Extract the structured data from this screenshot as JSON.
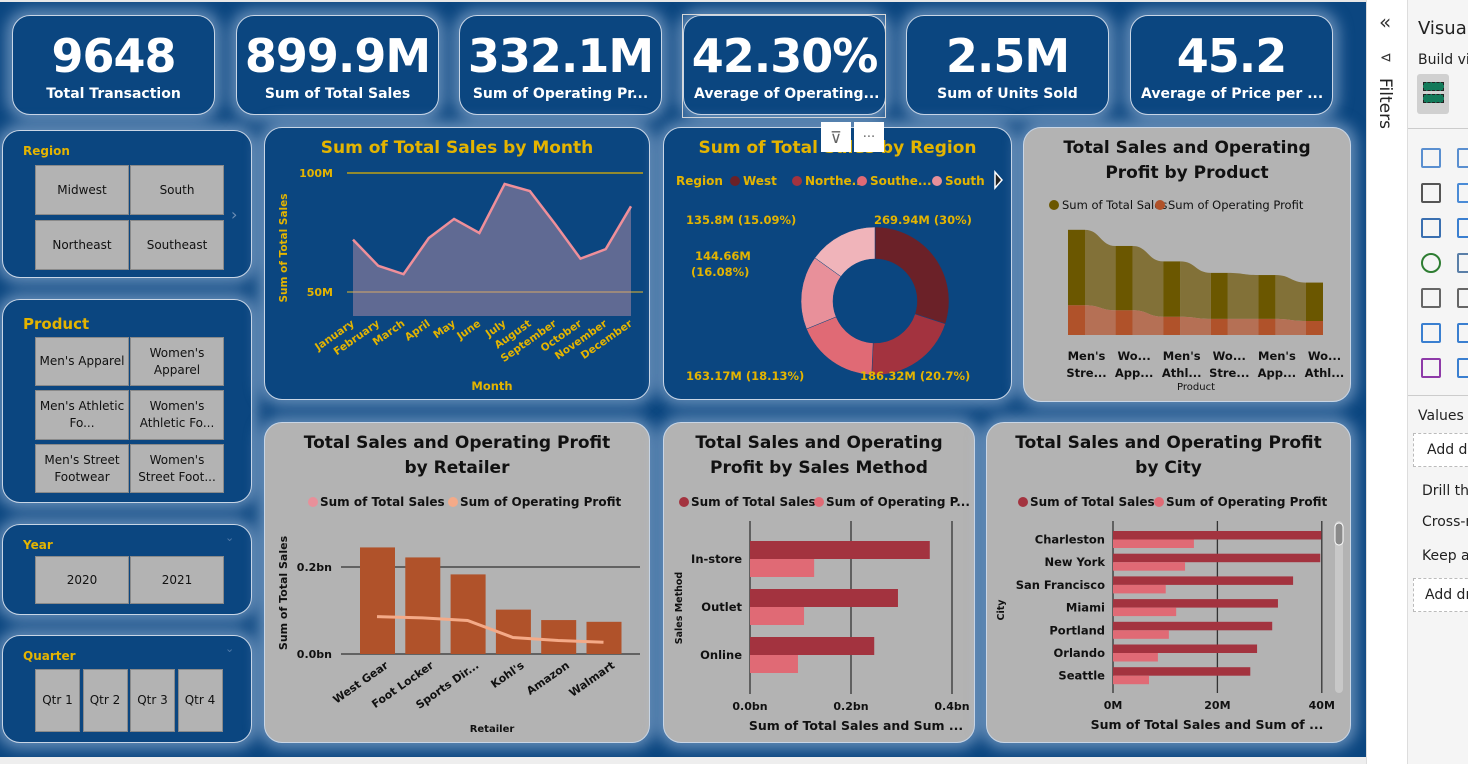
{
  "kpis": [
    {
      "value": "9648",
      "label": "Total Transaction"
    },
    {
      "value": "899.9M",
      "label": "Sum of Total Sales"
    },
    {
      "value": "332.1M",
      "label": "Sum of Operating Pr..."
    },
    {
      "value": "42.30%",
      "label": "Average of Operating..."
    },
    {
      "value": "2.5M",
      "label": "Sum of Units Sold"
    },
    {
      "value": "45.2",
      "label": "Average of Price per ..."
    }
  ],
  "slicers": {
    "region": {
      "title": "Region",
      "items": [
        "Midwest",
        "South",
        "Northeast",
        "Southeast"
      ]
    },
    "product": {
      "title": "Product",
      "items": [
        "Men's Apparel",
        "Women's Apparel",
        "Men's Athletic Fo...",
        "Women's Athletic Fo...",
        "Men's Street Footwear",
        "Women's Street Foot..."
      ]
    },
    "year": {
      "title": "Year",
      "items": [
        "2020",
        "2021"
      ]
    },
    "quarter": {
      "title": "Quarter",
      "items": [
        "Qtr 1",
        "Qtr 2",
        "Qtr 3",
        "Qtr 4"
      ]
    }
  },
  "visual_header": {
    "icons": [
      "filter-icon",
      "more-options-icon"
    ]
  },
  "colors": {
    "canvas": "#0b4680",
    "gold": "#e4b400",
    "card_grey": "#b3b3b3"
  },
  "chart_data": [
    {
      "id": "month",
      "type": "area",
      "title": "Sum of Total Sales by Month",
      "xlabel": "Month",
      "ylabel": "Sum of Total Sales",
      "categories": [
        "January",
        "February",
        "March",
        "April",
        "May",
        "June",
        "July",
        "August",
        "September",
        "October",
        "November",
        "December"
      ],
      "values": [
        72,
        61,
        57.5,
        72.7,
        80.7,
        74.8,
        95.4,
        92.4,
        78.5,
        64,
        68,
        86
      ],
      "unit": "M",
      "yticks": [
        "100M",
        "50M"
      ],
      "ytick_values": [
        100,
        50
      ],
      "grid": true,
      "color": "#ef8f9a"
    },
    {
      "id": "region",
      "type": "pie",
      "title": "Sum of Total Sales by Region",
      "legend_title": "Region",
      "legend_position": "top",
      "legend": [
        "West",
        "Northe...",
        "Southe...",
        "South"
      ],
      "values": [
        269.94,
        186.32,
        163.17,
        144.66,
        135.8
      ],
      "labels": [
        "269.94M (30%)",
        "186.32M (20.7%)",
        "163.17M (18.13%)",
        "144.66M (16.08%)",
        "135.8M (15.09%)"
      ],
      "colors": [
        "#6b2128",
        "#a3333f",
        "#e06a75",
        "#e8909a",
        "#f0b4ba"
      ]
    },
    {
      "id": "product",
      "type": "area",
      "subtype": "ribbon",
      "title": "Total Sales and Operating Profit by Product",
      "xlabel": "Product",
      "categories": [
        "Men's Stre...",
        "Wo... App...",
        "Men's Athl...",
        "Wo... Stre...",
        "Men's App...",
        "Wo... Athl..."
      ],
      "category_lines": [
        [
          "Men's",
          "Stre..."
        ],
        [
          "Wo...",
          "App..."
        ],
        [
          "Men's",
          "Athl..."
        ],
        [
          "Wo...",
          "Stre..."
        ],
        [
          "Men's",
          "App..."
        ],
        [
          "Wo...",
          "Athl..."
        ]
      ],
      "series": [
        {
          "name": "Sum of Total Sales",
          "values": [
            210,
            179,
            154,
            128,
            122,
            107
          ],
          "color": "#6b5700"
        },
        {
          "name": "Sum of Operating Profit",
          "values": [
            83,
            69,
            51,
            45,
            45,
            39
          ],
          "color": "#b0522a"
        }
      ],
      "unit": "M"
    },
    {
      "id": "retailer",
      "type": "bar",
      "title": "Total Sales and Operating Profit by Retailer",
      "xlabel": "Retailer",
      "ylabel": "Sum of Total Sales",
      "categories": [
        "West Gear",
        "Foot Locker",
        "Sports Dir...",
        "Kohl's",
        "Amazon",
        "Walmart"
      ],
      "series": [
        {
          "name": "Sum of Total Sales",
          "values": [
            0.245,
            0.222,
            0.183,
            0.102,
            0.078,
            0.074
          ],
          "color": "#b0522a",
          "legend_color": "#e8909a"
        },
        {
          "name": "Sum of Operating Profit",
          "type": "line",
          "values": [
            0.086,
            0.083,
            0.077,
            0.038,
            0.031,
            0.027
          ],
          "color": "#f4aa88"
        }
      ],
      "unit": "bn",
      "yticks": [
        "0.2bn",
        "0.0bn"
      ],
      "ytick_values": [
        0.2,
        0
      ]
    },
    {
      "id": "method",
      "type": "bar",
      "orientation": "horizontal",
      "title": "Total Sales and Operating Profit by Sales Method",
      "xlabel": "Sum of Total Sales and Sum ...",
      "ylabel": "Sales Method",
      "categories": [
        "In-store",
        "Outlet",
        "Online"
      ],
      "series": [
        {
          "name": "Sum of Total Sales",
          "values": [
            0.356,
            0.293,
            0.246
          ],
          "color": "#a3333f"
        },
        {
          "name": "Sum of Operating P...",
          "values": [
            0.127,
            0.107,
            0.095
          ],
          "color": "#e06a75"
        }
      ],
      "unit": "bn",
      "xticks": [
        "0.0bn",
        "0.2bn",
        "0.4bn"
      ],
      "xtick_values": [
        0,
        0.2,
        0.4
      ]
    },
    {
      "id": "city",
      "type": "bar",
      "orientation": "horizontal",
      "title": "Total Sales and Operating Profit by City",
      "xlabel": "Sum of Total Sales and Sum of ...",
      "ylabel": "City",
      "categories": [
        "Charleston",
        "New York",
        "San Francisco",
        "Miami",
        "Portland",
        "Orlando",
        "Seattle"
      ],
      "series": [
        {
          "name": "Sum of Total Sales",
          "values": [
            39.9,
            39.7,
            34.5,
            31.6,
            30.5,
            27.6,
            26.3
          ],
          "color": "#a3333f"
        },
        {
          "name": "Sum of Operating Profit",
          "values": [
            15.5,
            13.8,
            10.1,
            12.1,
            10.7,
            8.6,
            6.9
          ],
          "color": "#e06a75"
        }
      ],
      "unit": "M",
      "xticks": [
        "0M",
        "20M",
        "40M"
      ],
      "xtick_values": [
        0,
        20,
        40
      ]
    }
  ],
  "filters_pane": {
    "label": "Filters"
  },
  "viz_pane": {
    "title": "Visua",
    "build": "Build vi",
    "values": "Values",
    "add_data": "Add d",
    "drill": "Drill th",
    "cross": "Cross-r",
    "keep": "Keep a",
    "add_drill": "Add dr"
  }
}
